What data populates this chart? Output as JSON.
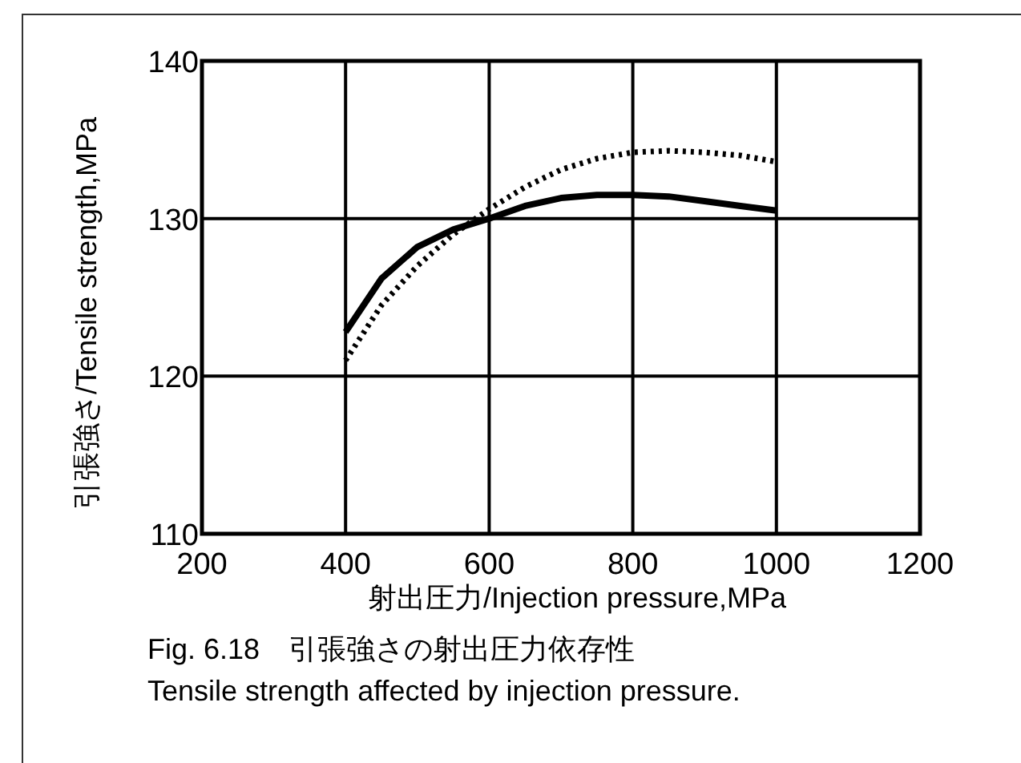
{
  "chart_data": {
    "type": "line",
    "xlabel": "射出圧力/Injection pressure,MPa",
    "ylabel": "引張強さ/Tensile strength,MPa",
    "x": [
      400,
      450,
      500,
      550,
      600,
      650,
      700,
      750,
      800,
      850,
      900,
      950,
      1000
    ],
    "series": [
      {
        "color": "#000000",
        "line_style": "solid",
        "values": [
          122.8,
          126.2,
          128.2,
          129.3,
          130.0,
          130.8,
          131.3,
          131.5,
          131.5,
          131.4,
          131.1,
          130.8,
          130.5
        ]
      },
      {
        "color": "#000000",
        "line_style": "dotted",
        "values": [
          121.0,
          124.5,
          127.0,
          129.0,
          130.6,
          132.0,
          133.1,
          133.8,
          134.2,
          134.3,
          134.2,
          134.0,
          133.6
        ]
      }
    ],
    "xlim": [
      200,
      1200
    ],
    "xticks": [
      200,
      400,
      600,
      800,
      1000,
      1200
    ],
    "ylim": [
      110,
      140
    ],
    "yticks": [
      110,
      120,
      130,
      140
    ],
    "grid": true,
    "marker": "none",
    "annotations": [
      "Fig. 6.18　引張強さの射出圧力依存性",
      "Tensile strength affected by injection pressure."
    ]
  }
}
